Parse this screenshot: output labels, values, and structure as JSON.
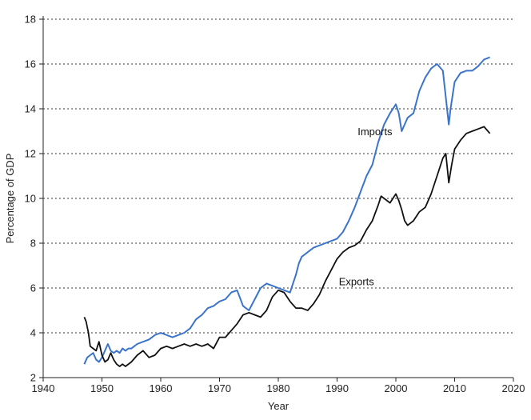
{
  "chart_data": {
    "type": "line",
    "title": "",
    "xlabel": "Year",
    "ylabel": "Percentage of GDP",
    "xlim": [
      1940,
      2020
    ],
    "ylim": [
      2,
      18
    ],
    "xticks": [
      1940,
      1950,
      1960,
      1970,
      1980,
      1990,
      2000,
      2010,
      2020
    ],
    "yticks": [
      2,
      4,
      6,
      8,
      10,
      12,
      14,
      16,
      18
    ],
    "grid": "horizontal dotted",
    "series": [
      {
        "name": "Imports",
        "color": "#3b74c9",
        "x": [
          1947.0,
          1947.5,
          1948.0,
          1948.5,
          1949.0,
          1949.5,
          1950.0,
          1950.5,
          1951.0,
          1951.5,
          1952.0,
          1952.5,
          1953.0,
          1953.5,
          1954.0,
          1954.5,
          1955.0,
          1955.5,
          1956.0,
          1957.0,
          1958.0,
          1959.0,
          1960.0,
          1961.0,
          1962.0,
          1963.0,
          1964.0,
          1965.0,
          1966.0,
          1967.0,
          1968.0,
          1969.0,
          1970.0,
          1971.0,
          1972.0,
          1973.0,
          1974.0,
          1975.0,
          1976.0,
          1977.0,
          1978.0,
          1979.0,
          1980.0,
          1981.0,
          1982.0,
          1983.0,
          1983.5,
          1984.0,
          1985.0,
          1986.0,
          1987.0,
          1988.0,
          1989.0,
          1990.0,
          1991.0,
          1992.0,
          1993.0,
          1994.0,
          1995.0,
          1996.0,
          1997.0,
          1998.0,
          1999.0,
          2000.0,
          2000.5,
          2001.0,
          2001.5,
          2002.0,
          2003.0,
          2004.0,
          2005.0,
          2006.0,
          2007.0,
          2008.0,
          2008.5,
          2009.0,
          2009.3,
          2010.0,
          2011.0,
          2012.0,
          2013.0,
          2014.0,
          2015.0,
          2016.0
        ],
        "values": [
          2.6,
          2.9,
          3.0,
          3.1,
          2.8,
          2.7,
          2.9,
          3.2,
          3.5,
          3.2,
          3.1,
          3.2,
          3.1,
          3.3,
          3.2,
          3.3,
          3.3,
          3.4,
          3.5,
          3.6,
          3.7,
          3.9,
          4.0,
          3.9,
          3.8,
          3.9,
          4.0,
          4.2,
          4.6,
          4.8,
          5.1,
          5.2,
          5.4,
          5.5,
          5.8,
          5.9,
          5.2,
          5.0,
          5.5,
          6.0,
          6.2,
          6.1,
          6.0,
          5.9,
          5.8,
          6.6,
          7.1,
          7.4,
          7.6,
          7.8,
          7.9,
          8.0,
          8.1,
          8.2,
          8.5,
          9.0,
          9.6,
          10.3,
          11.0,
          11.5,
          12.5,
          13.3,
          13.8,
          14.2,
          13.8,
          13.0,
          13.3,
          13.6,
          13.8,
          14.8,
          15.4,
          15.8,
          16.0,
          15.7,
          14.5,
          13.3,
          14.0,
          15.2,
          15.6,
          15.7,
          15.7,
          15.9,
          16.2,
          16.3
        ]
      },
      {
        "name": "Exports",
        "color": "#111111",
        "x": [
          1947.0,
          1947.3,
          1947.7,
          1948.0,
          1948.5,
          1949.0,
          1949.5,
          1950.0,
          1950.5,
          1951.0,
          1951.5,
          1952.0,
          1952.5,
          1953.0,
          1953.5,
          1954.0,
          1955.0,
          1956.0,
          1957.0,
          1958.0,
          1959.0,
          1960.0,
          1961.0,
          1962.0,
          1963.0,
          1964.0,
          1965.0,
          1966.0,
          1967.0,
          1968.0,
          1969.0,
          1970.0,
          1971.0,
          1972.0,
          1973.0,
          1974.0,
          1975.0,
          1976.0,
          1977.0,
          1978.0,
          1979.0,
          1980.0,
          1981.0,
          1982.0,
          1983.0,
          1984.0,
          1985.0,
          1986.0,
          1987.0,
          1988.0,
          1989.0,
          1990.0,
          1991.0,
          1992.0,
          1993.0,
          1994.0,
          1995.0,
          1996.0,
          1997.0,
          1997.5,
          1998.0,
          1999.0,
          2000.0,
          2000.5,
          2001.0,
          2001.5,
          2002.0,
          2002.5,
          2003.0,
          2004.0,
          2005.0,
          2006.0,
          2007.0,
          2008.0,
          2008.5,
          2009.0,
          2009.5,
          2010.0,
          2011.0,
          2012.0,
          2013.0,
          2014.0,
          2015.0,
          2016.0
        ],
        "values": [
          4.7,
          4.5,
          4.0,
          3.4,
          3.3,
          3.2,
          3.6,
          3.0,
          2.7,
          2.8,
          3.1,
          2.8,
          2.6,
          2.5,
          2.6,
          2.5,
          2.7,
          3.0,
          3.2,
          2.9,
          3.0,
          3.3,
          3.4,
          3.3,
          3.4,
          3.5,
          3.4,
          3.5,
          3.4,
          3.5,
          3.3,
          3.8,
          3.8,
          4.1,
          4.4,
          4.8,
          4.9,
          4.8,
          4.7,
          5.0,
          5.6,
          5.9,
          5.8,
          5.4,
          5.1,
          5.1,
          5.0,
          5.3,
          5.7,
          6.3,
          6.8,
          7.3,
          7.6,
          7.8,
          7.9,
          8.1,
          8.6,
          9.0,
          9.7,
          10.1,
          10.0,
          9.8,
          10.2,
          9.9,
          9.5,
          9.0,
          8.8,
          8.9,
          9.0,
          9.4,
          9.6,
          10.2,
          11.0,
          11.8,
          12.0,
          10.7,
          11.5,
          12.2,
          12.6,
          12.9,
          13.0,
          13.1,
          13.2,
          12.9
        ]
      }
    ],
    "annotations": [
      {
        "text": "Imports",
        "x": 1993.5,
        "y": 13.0
      },
      {
        "text": "Exports",
        "x": 1990.3,
        "y": 6.3
      }
    ]
  }
}
